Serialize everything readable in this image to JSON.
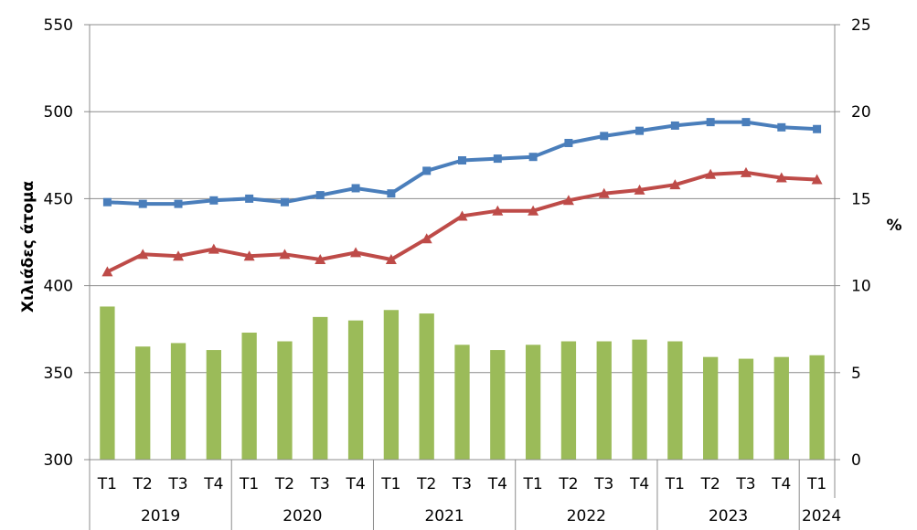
{
  "chart_data": {
    "type": "bar+line",
    "title": "",
    "ylabel_left": "Χιλιάδες άτομα",
    "ylabel_right": "%",
    "y_left_lim": [
      300,
      550
    ],
    "y_left_ticks": [
      "300",
      "350",
      "400",
      "450",
      "500",
      "550"
    ],
    "y_right_lim": [
      0,
      25
    ],
    "y_right_ticks": [
      "0",
      "5",
      "10",
      "15",
      "20",
      "25"
    ],
    "categories": [
      "T1",
      "T2",
      "T3",
      "T4",
      "T1",
      "T2",
      "T3",
      "T4",
      "T1",
      "T2",
      "T3",
      "T4",
      "T1",
      "T2",
      "T3",
      "T4",
      "T1",
      "T2",
      "T3",
      "T4",
      "T1"
    ],
    "years": [
      "2019",
      "2020",
      "2021",
      "2022",
      "2023",
      "2024"
    ],
    "series": [
      {
        "axis": "left",
        "kind": "line",
        "marker": "square",
        "color": "#4a7ebb",
        "values": [
          448,
          447,
          447,
          449,
          450,
          448,
          452,
          456,
          453,
          466,
          472,
          473,
          474,
          482,
          486,
          489,
          492,
          494,
          494,
          491,
          490
        ]
      },
      {
        "axis": "left",
        "kind": "line",
        "marker": "triangle",
        "color": "#be4b48",
        "values": [
          408,
          418,
          417,
          421,
          417,
          418,
          415,
          419,
          415,
          427,
          440,
          443,
          443,
          449,
          453,
          455,
          458,
          464,
          465,
          462,
          461
        ]
      },
      {
        "axis": "right",
        "kind": "bar",
        "color": "#9bbb59",
        "values": [
          8.8,
          6.5,
          6.7,
          6.3,
          7.3,
          6.8,
          8.2,
          8.0,
          8.6,
          8.4,
          6.6,
          6.3,
          6.6,
          6.8,
          6.8,
          6.9,
          6.8,
          5.9,
          5.8,
          5.9,
          6.0
        ]
      }
    ],
    "grid": "horizontal-major"
  }
}
